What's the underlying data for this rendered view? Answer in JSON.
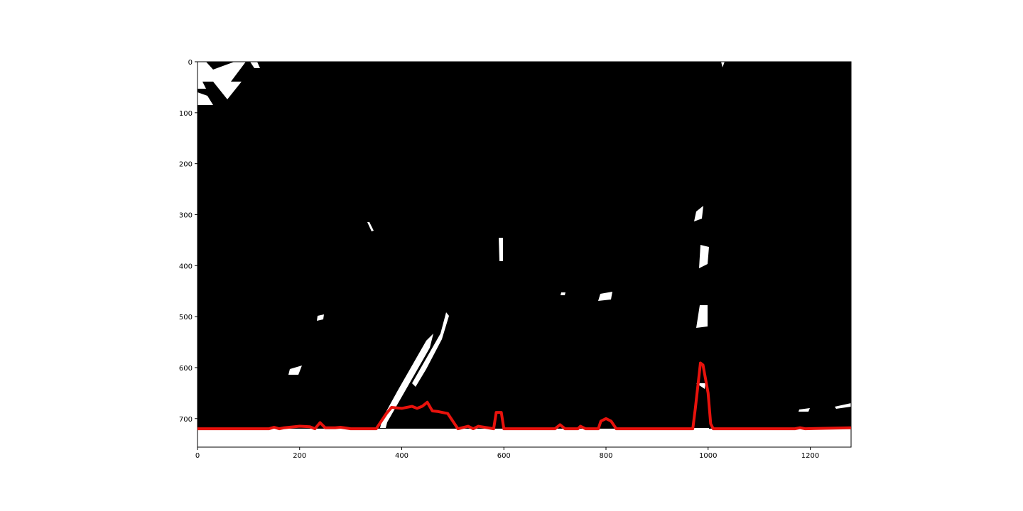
{
  "chart_data": {
    "type": "line",
    "x": [
      0,
      140,
      150,
      160,
      170,
      200,
      220,
      230,
      240,
      250,
      270,
      280,
      300,
      350,
      370,
      380,
      400,
      410,
      420,
      430,
      440,
      450,
      460,
      470,
      480,
      490,
      500,
      510,
      530,
      540,
      550,
      580,
      585,
      595,
      600,
      700,
      710,
      720,
      745,
      750,
      760,
      785,
      790,
      800,
      810,
      820,
      970,
      975,
      985,
      990,
      1000,
      1005,
      1010,
      1170,
      1180,
      1190,
      1280
    ],
    "series": [
      {
        "color": "#e8120c",
        "values": [
          720,
          720,
          717,
          720,
          718,
          715,
          716,
          720,
          708,
          718,
          718,
          717,
          720,
          720,
          690,
          678,
          680,
          678,
          676,
          680,
          676,
          668,
          685,
          686,
          688,
          690,
          705,
          720,
          715,
          720,
          715,
          720,
          688,
          688,
          720,
          720,
          712,
          720,
          720,
          715,
          720,
          720,
          705,
          700,
          705,
          720,
          720,
          680,
          591,
          595,
          650,
          710,
          720,
          720,
          718,
          720,
          718
        ]
      }
    ],
    "xlim": [
      0,
      1280
    ],
    "ylim": [
      756,
      0
    ],
    "xticks": [
      0,
      200,
      400,
      600,
      800,
      1000,
      1200
    ],
    "yticks": [
      0,
      100,
      200,
      300,
      400,
      500,
      600,
      700
    ]
  }
}
